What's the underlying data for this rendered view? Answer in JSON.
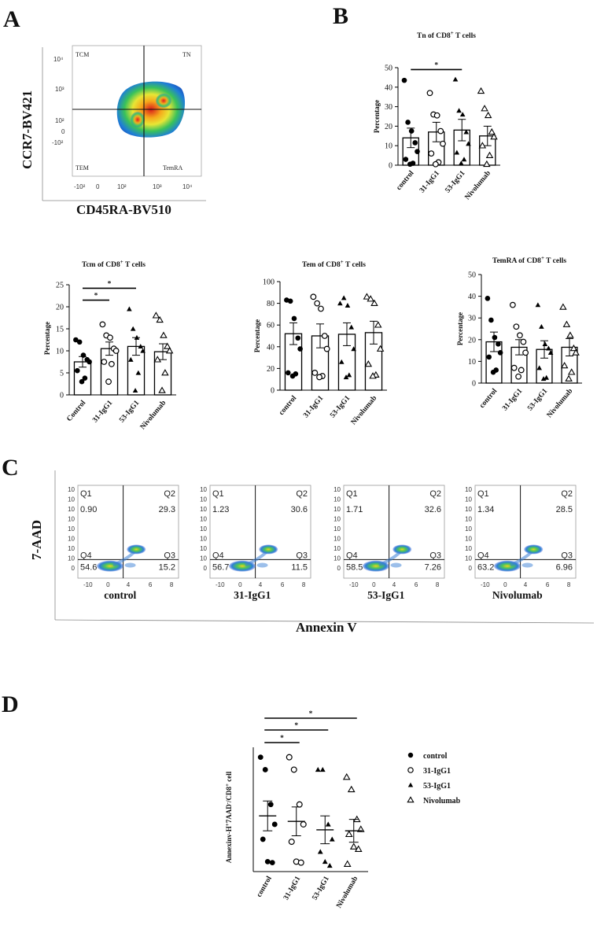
{
  "panels": {
    "A": {
      "letter": "A",
      "y_label": "CCR7-BV421",
      "x_label": "CD45RA-BV510",
      "x_ticks": [
        "-10²",
        "0",
        "10²",
        "10³",
        "10⁴"
      ],
      "y_ticks": [
        "10⁴",
        "10³",
        "10²",
        "0",
        "-10²"
      ],
      "quadrants": {
        "tl": "TCM",
        "tr": "TN",
        "bl": "TEM",
        "br": "TemRA"
      }
    },
    "B": {
      "letter": "B"
    },
    "C": {
      "letter": "C",
      "y_label": "7-AAD",
      "x_label": "Annexin V",
      "x_ticks": [
        "-10",
        "0",
        "4",
        "6",
        "8"
      ],
      "y_ticks": [
        "10",
        "10",
        "10",
        "10",
        "10",
        "10",
        "10",
        "10",
        "0"
      ],
      "plots": [
        {
          "name": "control",
          "q1": "0.90",
          "q2": "29.3",
          "q3": "15.2",
          "q4": "54.6"
        },
        {
          "name": "31-IgG1",
          "q1": "1.23",
          "q2": "30.6",
          "q3": "11.5",
          "q4": "56.7"
        },
        {
          "name": "53-IgG1",
          "q1": "1.71",
          "q2": "32.6",
          "q3": "7.26",
          "q4": "58.5"
        },
        {
          "name": "Nivolumab",
          "q1": "1.34",
          "q2": "28.5",
          "q3": "6.96",
          "q4": "63.2"
        }
      ],
      "quad_labels": {
        "q1": "Q1",
        "q2": "Q2",
        "q3": "Q3",
        "q4": "Q4"
      }
    },
    "D": {
      "letter": "D"
    }
  },
  "chart_data": [
    {
      "id": "tn",
      "type": "bar",
      "title_main": "Tn of CD8",
      "title_sup": "+",
      "title_end": " T cells",
      "ylabel": "Percentage",
      "ylim": [
        0,
        50
      ],
      "yticks": [
        0,
        10,
        20,
        30,
        40,
        50
      ],
      "categories": [
        "control",
        "31-IgG1",
        "53-IgG1",
        "Nivolumab"
      ],
      "values": [
        14,
        17,
        18,
        15
      ],
      "errors": [
        5,
        5,
        5.5,
        5
      ],
      "points": [
        [
          43.5,
          22,
          17.5,
          11.5,
          7,
          3,
          1,
          0.5
        ],
        [
          37,
          26,
          25.5,
          17.5,
          11,
          6,
          1.5,
          0.5
        ],
        [
          44,
          28,
          26,
          17,
          11,
          6.5,
          3,
          1
        ],
        [
          38,
          29,
          25.5,
          17,
          14.5,
          10,
          5,
          0.5
        ]
      ],
      "significance": [
        {
          "from": 0,
          "to": 2,
          "label": "*"
        }
      ]
    },
    {
      "id": "tcm",
      "type": "bar",
      "title_main": "Tcm of CD8",
      "title_sup": "+",
      "title_end": " T cells",
      "ylabel": "Percentage",
      "ylim": [
        0,
        25
      ],
      "yticks": [
        0,
        5,
        10,
        15,
        20,
        25
      ],
      "categories": [
        "Control",
        "31-IgG1",
        "53-IgG1",
        "Nivolumab"
      ],
      "values": [
        7.5,
        10.5,
        11,
        9.8
      ],
      "errors": [
        1.2,
        1.5,
        2,
        1.8
      ],
      "points": [
        [
          12.5,
          12,
          9,
          8,
          7.5,
          5.5,
          3.8,
          3
        ],
        [
          16,
          13.5,
          13,
          10.5,
          10,
          7.5,
          7,
          3
        ],
        [
          19.5,
          15,
          13,
          11,
          10,
          8,
          5,
          1
        ],
        [
          18,
          17,
          13.5,
          11,
          10,
          8,
          5,
          1
        ]
      ],
      "significance": [
        {
          "from": 0,
          "to": 1,
          "label": "*"
        },
        {
          "from": 0,
          "to": 2,
          "label": "*"
        }
      ]
    },
    {
      "id": "tem",
      "type": "bar",
      "title_main": "Tem of CD8",
      "title_sup": "+",
      "title_end": " T cells",
      "ylabel": "Percentage",
      "ylim": [
        0,
        100
      ],
      "yticks": [
        0,
        20,
        40,
        60,
        80,
        100
      ],
      "categories": [
        "control",
        "31-IgG1",
        "53-IgG1",
        "Nivolumab"
      ],
      "values": [
        52,
        50,
        51.5,
        53
      ],
      "errors": [
        10,
        11,
        10.5,
        10.5
      ],
      "points": [
        [
          83,
          82,
          66,
          48,
          38,
          16,
          15,
          13
        ],
        [
          86,
          80,
          75,
          50,
          38,
          16,
          13,
          12
        ],
        [
          80,
          85,
          78,
          58,
          38,
          26,
          14,
          12
        ],
        [
          86,
          84,
          80,
          60,
          38,
          24,
          14,
          13
        ]
      ],
      "significance": []
    },
    {
      "id": "temra",
      "type": "bar",
      "title_main": "TemRA of CD8",
      "title_sup": "+",
      "title_end": " T cells",
      "ylabel": "Percentage",
      "ylim": [
        0,
        50
      ],
      "yticks": [
        0,
        10,
        20,
        30,
        40,
        50
      ],
      "categories": [
        "control",
        "31-IgG1",
        "53-IgG1",
        "Nivolumab"
      ],
      "values": [
        19,
        16.5,
        15.5,
        16.5
      ],
      "errors": [
        4.5,
        3.5,
        4,
        4
      ],
      "points": [
        [
          39,
          29,
          21,
          18,
          14,
          12,
          6,
          5
        ],
        [
          36,
          26,
          22,
          19,
          14,
          7,
          6,
          3
        ],
        [
          36,
          26,
          18,
          16,
          14,
          7,
          2.5,
          2
        ],
        [
          35,
          27,
          22,
          16,
          14,
          8,
          5,
          2
        ]
      ],
      "significance": []
    },
    {
      "id": "annexin",
      "type": "scatter",
      "ylabel_main": "Annexinv-H",
      "ylabel_sup1": "+",
      "ylabel_mid": "7AAD",
      "ylabel_sup2": "-",
      "ylabel_mid2": "/CD8",
      "ylabel_sup3": "+",
      "ylabel_end": " cell",
      "ylim": [
        0,
        25
      ],
      "categories": [
        "control",
        "31-IgG1",
        "53-IgG1",
        "Nivolumab"
      ],
      "means": [
        11.2,
        10.1,
        8.4,
        8.2
      ],
      "errors": [
        3.0,
        2.9,
        2.8,
        2.3
      ],
      "points": [
        [
          23,
          20.5,
          13.5,
          9.5,
          6.5,
          2.0,
          1.8
        ],
        [
          23,
          20.5,
          13.5,
          9.5,
          6.0,
          2.0,
          1.8
        ],
        [
          20.5,
          20.5,
          9.5,
          6.5,
          4.0,
          2.0,
          1.2
        ],
        [
          19,
          16.5,
          10.5,
          8.5,
          7.5,
          5.0,
          4.5,
          1.5
        ]
      ],
      "markers": [
        "filled-circle",
        "open-circle",
        "filled-triangle",
        "open-triangle"
      ],
      "legend": [
        "control",
        "31-IgG1",
        "53-IgG1",
        "Nivolumab"
      ],
      "significance": [
        {
          "from": 0,
          "to": 1,
          "label": "*"
        },
        {
          "from": 0,
          "to": 2,
          "label": "*"
        },
        {
          "from": 0,
          "to": 3,
          "label": "*"
        }
      ]
    }
  ]
}
